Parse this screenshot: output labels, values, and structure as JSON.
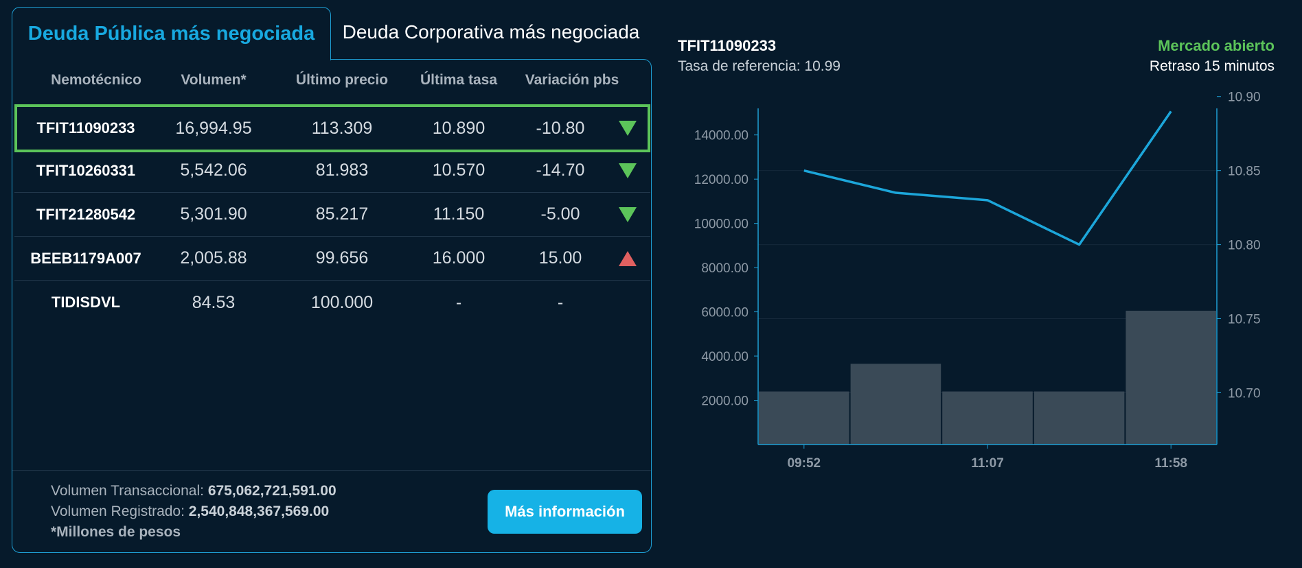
{
  "tabs": {
    "active": "Deuda Pública más negociada",
    "inactive": "Deuda Corporativa más negociada"
  },
  "table": {
    "headers": [
      "Nemotécnico",
      "Volumen*",
      "Último precio",
      "Última tasa",
      "Variación pbs"
    ],
    "rows": [
      {
        "nemo": "TFIT11090233",
        "volumen": "16,994.95",
        "precio": "113.309",
        "tasa": "10.890",
        "variacion": "-10.80",
        "trend": "down"
      },
      {
        "nemo": "TFIT10260331",
        "volumen": "5,542.06",
        "precio": "81.983",
        "tasa": "10.570",
        "variacion": "-14.70",
        "trend": "down"
      },
      {
        "nemo": "TFIT21280542",
        "volumen": "5,301.90",
        "precio": "85.217",
        "tasa": "11.150",
        "variacion": "-5.00",
        "trend": "down"
      },
      {
        "nemo": "BEEB1179A007",
        "volumen": "2,005.88",
        "precio": "99.656",
        "tasa": "16.000",
        "variacion": "15.00",
        "trend": "up"
      },
      {
        "nemo": "TIDISDVL",
        "volumen": "84.53",
        "precio": "100.000",
        "tasa": "-",
        "variacion": "-",
        "trend": "none"
      }
    ]
  },
  "footer": {
    "volumen_transaccional_label": "Volumen Transaccional:",
    "volumen_transaccional_value": "675,062,721,591.00",
    "volumen_registrado_label": "Volumen Registrado:",
    "volumen_registrado_value": "2,540,848,367,569.00",
    "note": "*Millones de pesos",
    "button": "Más información"
  },
  "chart_header": {
    "title": "TFIT11090233",
    "subtitle": "Tasa de referencia: 10.99",
    "status": "Mercado abierto",
    "delay": "Retraso 15 minutos"
  },
  "colors": {
    "background": "#061a2b",
    "accent": "#18a9e0",
    "positive": "#5cc45a",
    "negative": "#e06060",
    "bars": "#3a4a57"
  },
  "chart_data": {
    "type": "bar+line",
    "x_ticks": [
      "09:52",
      "11:07",
      "11:58"
    ],
    "bars": {
      "name": "Volumen",
      "values": [
        2400,
        3650,
        2400,
        2400,
        6050
      ],
      "axis": "left",
      "ylim": [
        0,
        15200
      ],
      "ticks": [
        2000,
        4000,
        6000,
        8000,
        10000,
        12000,
        14000
      ],
      "tick_labels": [
        "2000.00",
        "4000.00",
        "6000.00",
        "8000.00",
        "10000.00",
        "12000.00",
        "14000.00"
      ]
    },
    "line": {
      "name": "Tasa",
      "points": [
        10.85,
        10.835,
        10.83,
        10.8,
        10.89
      ],
      "axis": "right",
      "ylim": [
        10.665,
        10.892
      ],
      "ticks": [
        10.7,
        10.75,
        10.8,
        10.85,
        10.9
      ],
      "tick_labels": [
        "10.70",
        "10.75",
        "10.80",
        "10.85",
        "10.90"
      ]
    }
  }
}
